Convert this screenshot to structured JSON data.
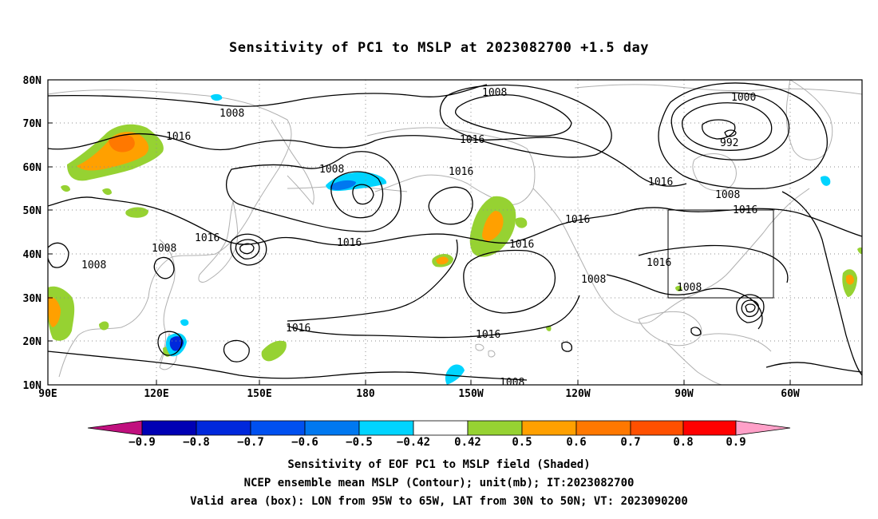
{
  "title": "Sensitivity of PC1 to MSLP at 2023082700 +1.5 day",
  "map": {
    "lat_labels": [
      "80N",
      "70N",
      "60N",
      "50N",
      "40N",
      "30N",
      "20N",
      "10N"
    ],
    "lon_labels": [
      "90E",
      "120E",
      "150E",
      "180",
      "150W",
      "120W",
      "90W",
      "60W"
    ],
    "lon_range": [
      "90E",
      "45W"
    ],
    "lat_range": [
      "10N",
      "80N"
    ],
    "valid_box": {
      "lon": [
        "95W",
        "65W"
      ],
      "lat": [
        "30N",
        "50N"
      ]
    },
    "contour_labels": [
      "1008",
      "1016",
      "1008",
      "1016",
      "1016",
      "1008",
      "1016",
      "1008",
      "1000",
      "992",
      "1016",
      "1008",
      "1016",
      "1016",
      "1008",
      "1016",
      "1016",
      "1008",
      "1008",
      "1016",
      "1016",
      "1016",
      "1008"
    ],
    "colors": {
      "contour": "#000000",
      "coastline": "#b0b0b0",
      "grid": "#8c8c8c"
    }
  },
  "colorbar": {
    "colors": [
      "#c0107e",
      "#0000b4",
      "#0028dc",
      "#0050f0",
      "#0078f0",
      "#00b4f0",
      "#00d4ff",
      "#ffffff",
      "#96d232",
      "#ffa000",
      "#ff7800",
      "#ff5000",
      "#ff2800",
      "#ff0000",
      "#ffa0c8"
    ],
    "labels": [
      "−0.9",
      "−0.8",
      "−0.7",
      "−0.6",
      "−0.5",
      "−0.42",
      "0.42",
      "0.5",
      "0.6",
      "0.7",
      "0.8",
      "0.9"
    ]
  },
  "captions": [
    "Sensitivity of EOF PC1 to MSLP field (Shaded)",
    "NCEP ensemble mean MSLP (Contour); unit(mb); IT:2023082700",
    "Valid area (box): LON from 95W to 65W, LAT from 30N to 50N; VT: 2023090200"
  ]
}
